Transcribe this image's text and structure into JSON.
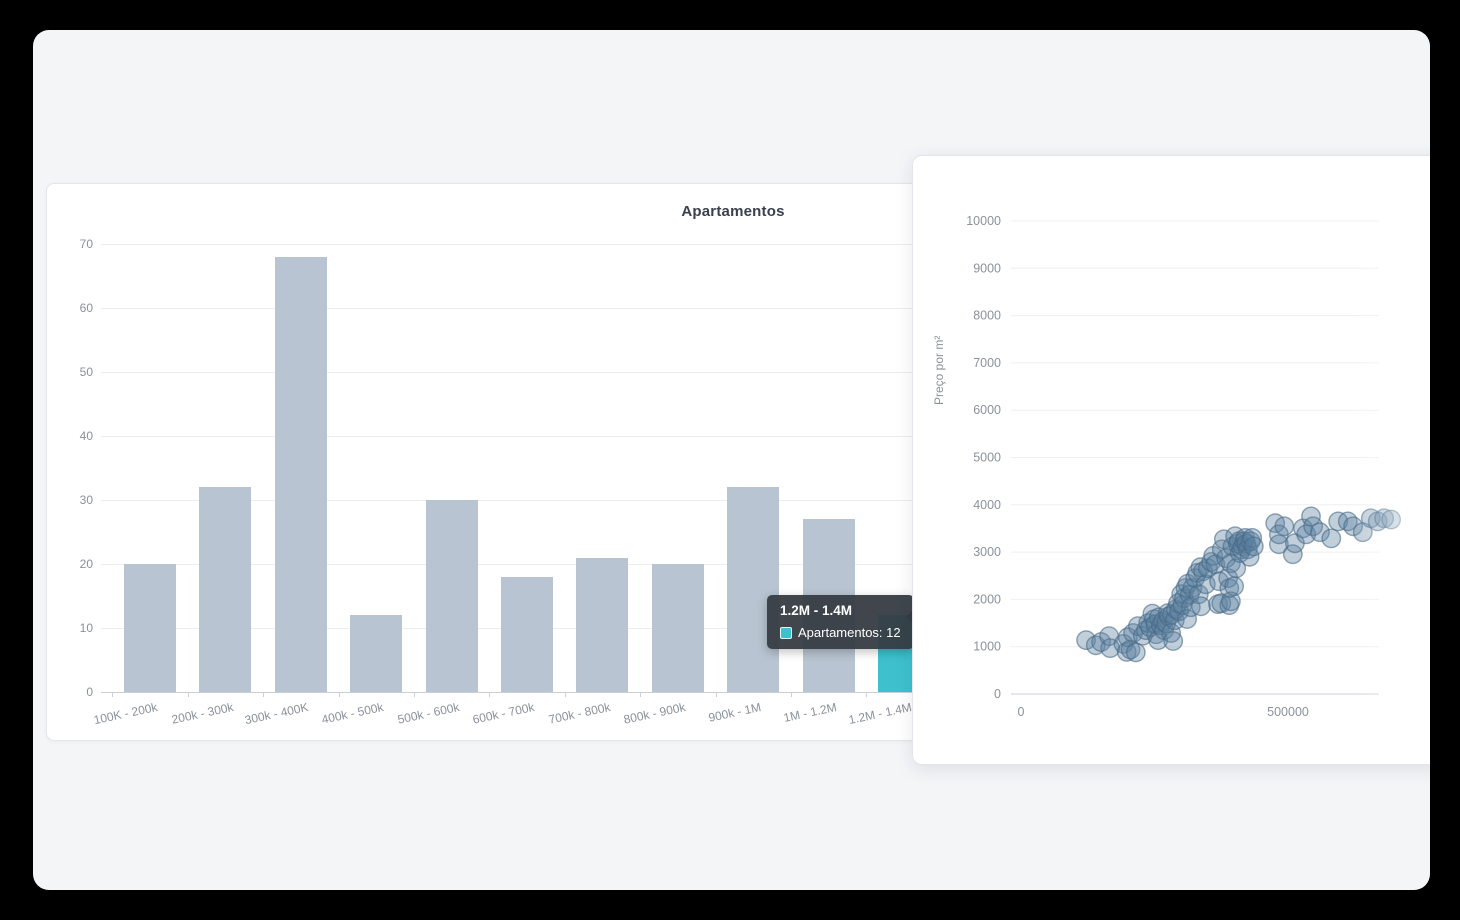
{
  "colors": {
    "bar_fill": "#b8c4d1",
    "highlight_teal": "#3ec1cd",
    "scatter_fill": "rgba(93,130,160,0.38)",
    "scatter_stroke": "rgba(72,105,133,0.6)",
    "card_background": "#ffffff",
    "window_background": "#f3f5f7",
    "tooltip_background": "rgba(54,60,66,0.95)"
  },
  "bar_chart": {
    "title": "Apartamentos",
    "tooltip": {
      "title": "1.2M - 1.4M",
      "series_text": "Apartamentos: 12"
    }
  },
  "scatter_chart": {
    "ylabel": "Preço por m²"
  },
  "chart_data": [
    {
      "type": "bar",
      "title": "Apartamentos",
      "categories": [
        "100K - 200k",
        "200k - 300k",
        "300k - 400K",
        "400k - 500k",
        "500k - 600k",
        "600k - 700k",
        "700k - 800k",
        "800k - 900k",
        "900k - 1M",
        "1M - 1.2M",
        "1.2M - 1.4M"
      ],
      "values": [
        20,
        32,
        68,
        12,
        30,
        18,
        21,
        20,
        32,
        27,
        12
      ],
      "xlabel": "",
      "ylabel": "",
      "ylim": [
        0,
        70
      ],
      "yticks": [
        0,
        10,
        20,
        30,
        40,
        50,
        60,
        70
      ],
      "grid": true,
      "highlight_index": 10,
      "tooltip": {
        "category": "1.2M - 1.4M",
        "series": "Apartamentos",
        "value": 12
      }
    },
    {
      "type": "scatter",
      "title": "",
      "xlabel": "",
      "ylabel": "Preço por m²",
      "xlim": [
        0,
        670000
      ],
      "ylim": [
        0,
        10000
      ],
      "xticks": [
        0,
        500000
      ],
      "yticks": [
        0,
        1000,
        2000,
        3000,
        4000,
        5000,
        6000,
        7000,
        8000,
        9000,
        10000
      ],
      "grid": true,
      "points": [
        [
          122000,
          1140
        ],
        [
          140000,
          1030
        ],
        [
          150000,
          1100
        ],
        [
          165000,
          1225
        ],
        [
          167000,
          970
        ],
        [
          192000,
          1060
        ],
        [
          198000,
          890
        ],
        [
          200000,
          1200
        ],
        [
          205000,
          940
        ],
        [
          210000,
          1290
        ],
        [
          215000,
          880
        ],
        [
          219000,
          1435
        ],
        [
          228000,
          1230
        ],
        [
          234000,
          1350
        ],
        [
          238000,
          1500
        ],
        [
          242000,
          1410
        ],
        [
          246000,
          1700
        ],
        [
          249000,
          1580
        ],
        [
          252000,
          1475
        ],
        [
          253000,
          1265
        ],
        [
          257000,
          1140
        ],
        [
          258000,
          1620
        ],
        [
          262000,
          1450
        ],
        [
          266000,
          1540
        ],
        [
          268000,
          1350
        ],
        [
          272000,
          1500
        ],
        [
          275000,
          1710
        ],
        [
          277000,
          1645
        ],
        [
          281000,
          1290
        ],
        [
          283000,
          1680
        ],
        [
          285000,
          1120
        ],
        [
          288000,
          1560
        ],
        [
          290000,
          1790
        ],
        [
          294000,
          1920
        ],
        [
          296000,
          1750
        ],
        [
          300000,
          2110
        ],
        [
          302000,
          1880
        ],
        [
          305000,
          2025
        ],
        [
          308000,
          2240
        ],
        [
          311000,
          1585
        ],
        [
          312000,
          2330
        ],
        [
          316000,
          2100
        ],
        [
          318000,
          1835
        ],
        [
          321000,
          2240
        ],
        [
          326000,
          2450
        ],
        [
          330000,
          2560
        ],
        [
          333000,
          2110
        ],
        [
          336000,
          2680
        ],
        [
          337000,
          1855
        ],
        [
          341000,
          2595
        ],
        [
          346000,
          2320
        ],
        [
          350000,
          2660
        ],
        [
          356000,
          2790
        ],
        [
          360000,
          2920
        ],
        [
          364000,
          2740
        ],
        [
          369000,
          1900
        ],
        [
          371000,
          2385
        ],
        [
          375000,
          1920
        ],
        [
          376000,
          3060
        ],
        [
          380000,
          3270
        ],
        [
          384000,
          2870
        ],
        [
          388000,
          2450
        ],
        [
          390000,
          1880
        ],
        [
          390000,
          2235
        ],
        [
          393000,
          1960
        ],
        [
          393000,
          2765
        ],
        [
          396000,
          3120
        ],
        [
          399000,
          2280
        ],
        [
          401000,
          3335
        ],
        [
          403000,
          2660
        ],
        [
          406000,
          3180
        ],
        [
          408000,
          3230
        ],
        [
          410000,
          2980
        ],
        [
          413000,
          3060
        ],
        [
          415000,
          3120
        ],
        [
          418000,
          3230
        ],
        [
          420000,
          3300
        ],
        [
          422000,
          3180
        ],
        [
          425000,
          3060
        ],
        [
          428000,
          2900
        ],
        [
          430000,
          3230
        ],
        [
          433000,
          3300
        ],
        [
          436000,
          3120
        ],
        [
          476000,
          3610
        ],
        [
          483000,
          3165
        ],
        [
          483000,
          3375
        ],
        [
          493000,
          3545
        ],
        [
          509000,
          2955
        ],
        [
          513000,
          3185
        ],
        [
          528000,
          3500
        ],
        [
          534000,
          3375
        ],
        [
          543000,
          3755
        ],
        [
          547000,
          3545
        ],
        [
          560000,
          3420
        ],
        [
          581000,
          3290
        ],
        [
          594000,
          3650
        ],
        [
          612000,
          3650
        ],
        [
          622000,
          3545
        ],
        [
          640000,
          3420
        ],
        [
          655000,
          3715
        ],
        [
          668000,
          3650
        ],
        [
          680000,
          3715
        ],
        [
          693000,
          3690
        ]
      ]
    }
  ]
}
